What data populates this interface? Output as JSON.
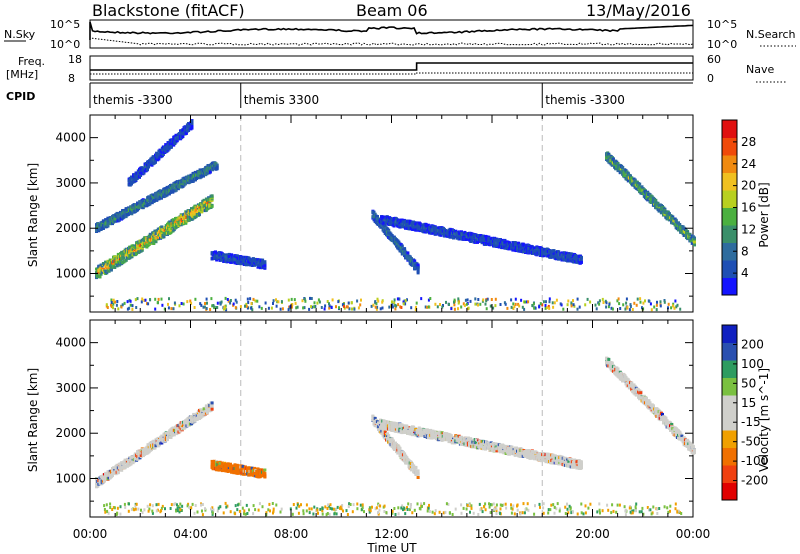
{
  "header": {
    "station": "Blackstone (fitACF)",
    "beam": "Beam 06",
    "date": "13/May/2016"
  },
  "top_panels": {
    "nsky_label": "N.Sky",
    "nsearch_label": "N.Search",
    "nsky_ticks": [
      "10^5",
      "10^0"
    ],
    "nsearch_ticks": [
      "10^5",
      "10^0"
    ],
    "freq_label": "Freq.",
    "freq_unit": "[MHz]",
    "freq_ticks": [
      "18",
      "8"
    ],
    "nave_label": "Nave",
    "nave_ticks": [
      "60",
      "0"
    ],
    "cpid_label": "CPID",
    "cpid_segments": [
      {
        "label": "themis -3300",
        "start": "00:00",
        "end": "06:00"
      },
      {
        "label": "themis 3300",
        "start": "06:00",
        "end": "18:00"
      },
      {
        "label": "themis -3300",
        "start": "18:00",
        "end": "24:00"
      }
    ]
  },
  "colors": {
    "power": [
      "#1414ff",
      "#1e4fb4",
      "#2e6c9e",
      "#3a8f6a",
      "#4bb040",
      "#b8d020",
      "#f0c020",
      "#f08a10",
      "#f04a0a",
      "#e01010"
    ],
    "velocity": [
      "#e00000",
      "#f04010",
      "#f07000",
      "#f0a000",
      "#cfcfcb",
      "#cfcfcb",
      "#7ac040",
      "#2e9c60",
      "#2a50b0",
      "#1020c0"
    ],
    "scatter_gray": "#cfcfcb"
  },
  "chart_data": [
    {
      "type": "heatmap",
      "title": "Power",
      "xlabel": "Time UT",
      "ylabel": "Slant Range [km]",
      "x_ticks": [
        "00:00",
        "04:00",
        "08:00",
        "12:00",
        "16:00",
        "20:00",
        "00:00"
      ],
      "y_ticks": [
        "1000",
        "2000",
        "3000",
        "4000"
      ],
      "ylim": [
        150,
        4500
      ],
      "xlim_hours": [
        0,
        24
      ],
      "colorbar_label": "Power [dB]",
      "colorbar_ticks": [
        "4",
        "8",
        "12",
        "16",
        "20",
        "24",
        "28"
      ],
      "features": [
        {
          "name": "lower band",
          "start_h": 0.2,
          "end_h": 4.8,
          "range_start_km": 1000,
          "range_end_km": 2600,
          "peak_power_db": 30
        },
        {
          "name": "upper band",
          "start_h": 0.2,
          "end_h": 5.0,
          "range_start_km": 2000,
          "range_end_km": 3400,
          "peak_power_db": 16
        },
        {
          "name": "high arc",
          "start_h": 1.5,
          "end_h": 4.0,
          "range_start_km": 3000,
          "range_end_km": 4300,
          "peak_power_db": 8
        },
        {
          "name": "patch",
          "start_h": 4.8,
          "end_h": 6.9,
          "range_start_km": 1400,
          "range_end_km": 1200,
          "peak_power_db": 8
        },
        {
          "name": "midday arc",
          "start_h": 11.2,
          "end_h": 13.0,
          "range_start_km": 2300,
          "range_end_km": 1100,
          "peak_power_db": 12
        },
        {
          "name": "evening band",
          "start_h": 11.5,
          "end_h": 19.5,
          "range_start_km": 2200,
          "range_end_km": 1300,
          "peak_power_db": 8
        },
        {
          "name": "late arc",
          "start_h": 20.5,
          "end_h": 24.0,
          "range_start_km": 3600,
          "range_end_km": 1700,
          "peak_power_db": 20
        }
      ]
    },
    {
      "type": "heatmap",
      "title": "Velocity",
      "xlabel": "Time UT",
      "ylabel": "Slant Range [km]",
      "x_ticks": [
        "00:00",
        "04:00",
        "08:00",
        "12:00",
        "16:00",
        "20:00",
        "00:00"
      ],
      "y_ticks": [
        "1000",
        "2000",
        "3000",
        "4000"
      ],
      "ylim": [
        150,
        4500
      ],
      "xlim_hours": [
        0,
        24
      ],
      "colorbar_label": "Velocity [m s^-1]",
      "colorbar_ticks": [
        "200",
        "100",
        "50",
        "15",
        "-15",
        "-50",
        "-100",
        "-200"
      ],
      "features": [
        {
          "name": "ground scatter band",
          "start_h": 0.2,
          "end_h": 4.8,
          "range_start_km": 900,
          "range_end_km": 2600,
          "velocity_ms": 0
        },
        {
          "name": "patch",
          "start_h": 4.8,
          "end_h": 6.9,
          "range_start_km": 1300,
          "range_end_km": 1100,
          "velocity_ms": -60
        },
        {
          "name": "midday arc",
          "start_h": 11.2,
          "end_h": 13.0,
          "range_start_km": 2300,
          "range_end_km": 1100,
          "velocity_ms": 0
        },
        {
          "name": "evening band",
          "start_h": 11.5,
          "end_h": 19.5,
          "range_start_km": 2200,
          "range_end_km": 1300,
          "velocity_ms": 0
        },
        {
          "name": "late arc",
          "start_h": 20.5,
          "end_h": 24.0,
          "range_start_km": 3600,
          "range_end_km": 1600,
          "velocity_ms": 0
        }
      ]
    }
  ]
}
